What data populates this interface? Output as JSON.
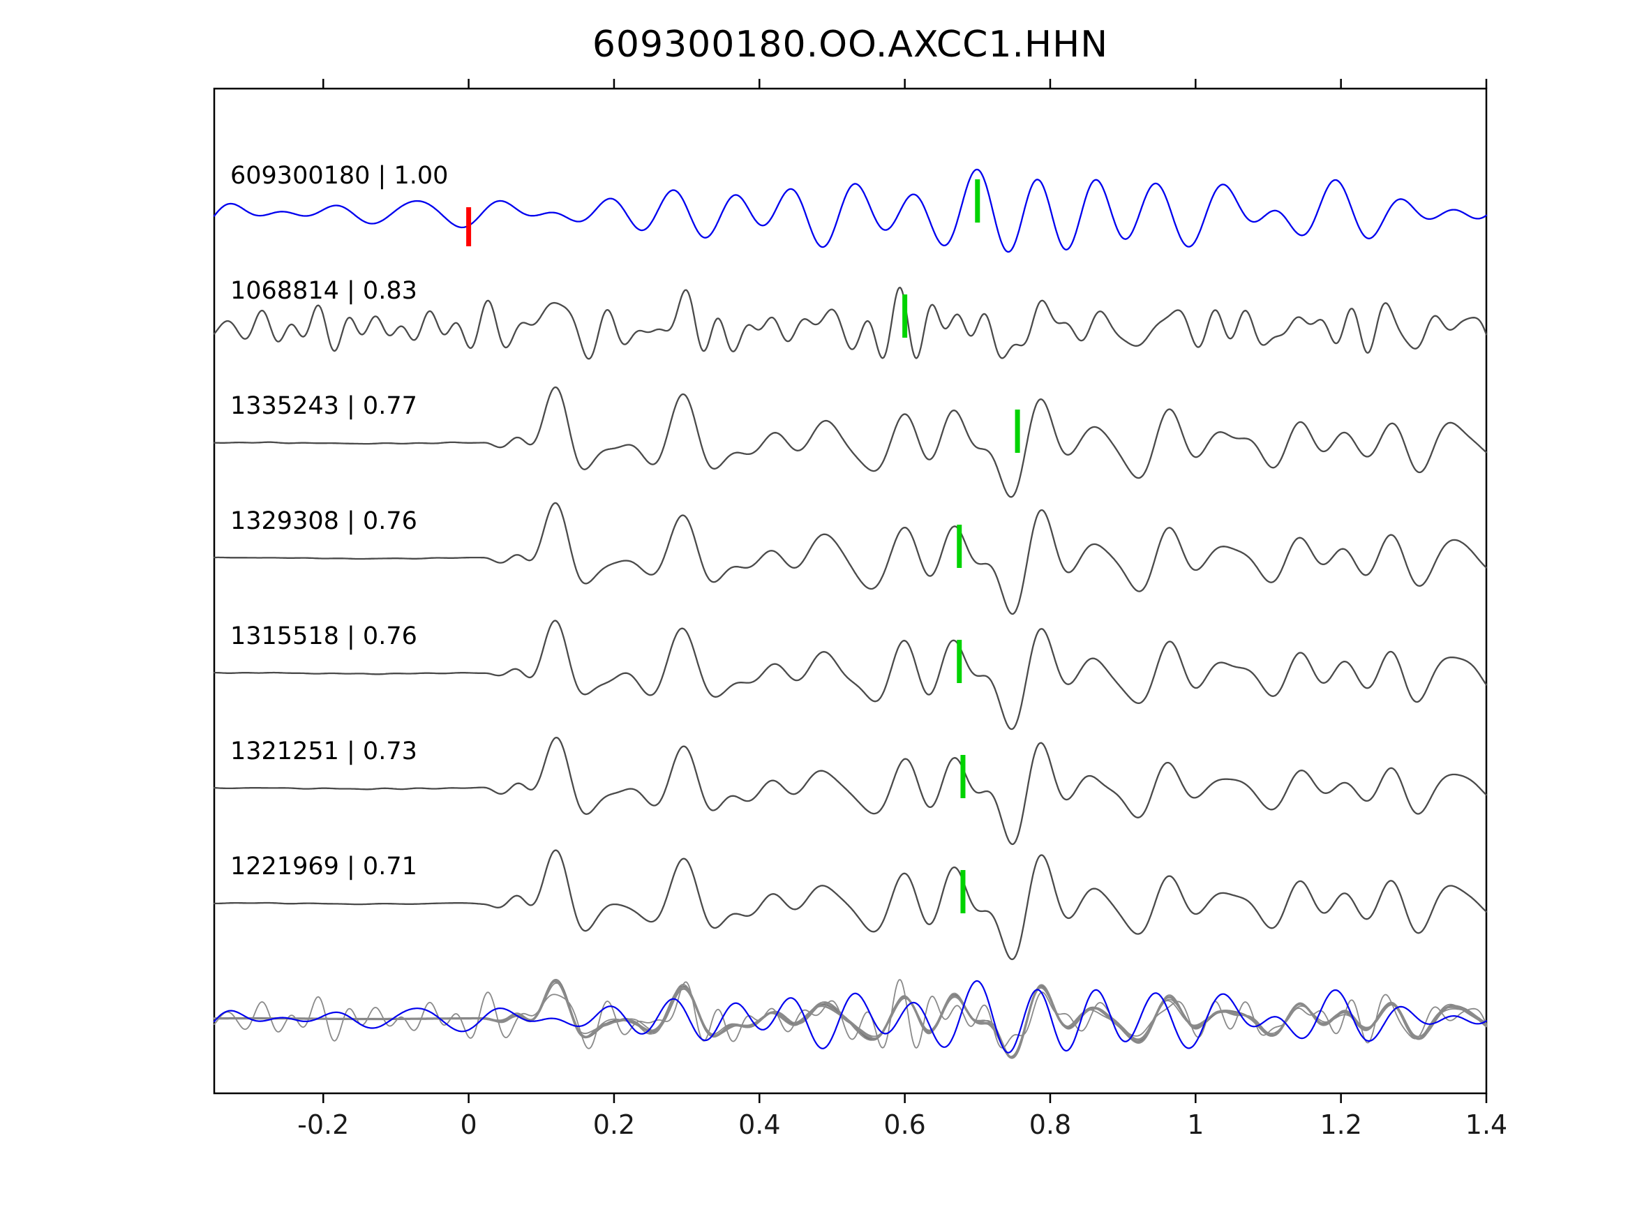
{
  "chart_data": {
    "type": "line",
    "title": "609300180.OO.AXCC1.HHN",
    "xlabel": "",
    "ylabel": "",
    "xlim": [
      -0.35,
      1.4
    ],
    "x_ticks": [
      "-0.2",
      "0",
      "0.2",
      "0.4",
      "0.6",
      "0.8",
      "1",
      "1.2",
      "1.4"
    ],
    "x_tick_values": [
      -0.2,
      0,
      0.2,
      0.4,
      0.6,
      0.8,
      1.0,
      1.2,
      1.4
    ],
    "grid": false,
    "legend": null,
    "colors": {
      "reference_trace": "#0000ee",
      "match_trace": "#4a4a4a",
      "overlay_gray": "#8a8a8a",
      "frame": "#000000"
    },
    "pick_colors": {
      "reference_pick": "#ff0000",
      "aligned_pick": "#00d300"
    },
    "traces": [
      {
        "label": "609300180 | 1.00",
        "event_id": "609300180",
        "correlation": 1.0,
        "role": "reference",
        "picks": [
          {
            "time": 0.0,
            "type": "reference_pick"
          },
          {
            "time": 0.7,
            "type": "aligned_pick"
          }
        ]
      },
      {
        "label": "1068814 | 0.83",
        "event_id": "1068814",
        "correlation": 0.83,
        "role": "match",
        "picks": [
          {
            "time": 0.6,
            "type": "aligned_pick"
          }
        ]
      },
      {
        "label": "1335243 | 0.77",
        "event_id": "1335243",
        "correlation": 0.77,
        "role": "match",
        "picks": [
          {
            "time": 0.755,
            "type": "aligned_pick"
          }
        ]
      },
      {
        "label": "1329308 | 0.76",
        "event_id": "1329308",
        "correlation": 0.76,
        "role": "match",
        "picks": [
          {
            "time": 0.675,
            "type": "aligned_pick"
          }
        ]
      },
      {
        "label": "1315518 | 0.76",
        "event_id": "1315518",
        "correlation": 0.76,
        "role": "match",
        "picks": [
          {
            "time": 0.675,
            "type": "aligned_pick"
          }
        ]
      },
      {
        "label": "1321251 | 0.73",
        "event_id": "1321251",
        "correlation": 0.73,
        "role": "match",
        "picks": [
          {
            "time": 0.68,
            "type": "aligned_pick"
          }
        ]
      },
      {
        "label": "1221969 | 0.71",
        "event_id": "1221969",
        "correlation": 0.71,
        "role": "match",
        "picks": [
          {
            "time": 0.68,
            "type": "aligned_pick"
          }
        ]
      }
    ],
    "overlay_row": {
      "description": "all matched traces overlaid in gray with reference trace in blue",
      "gray_trace_count": 6,
      "blue_trace": "609300180"
    }
  }
}
